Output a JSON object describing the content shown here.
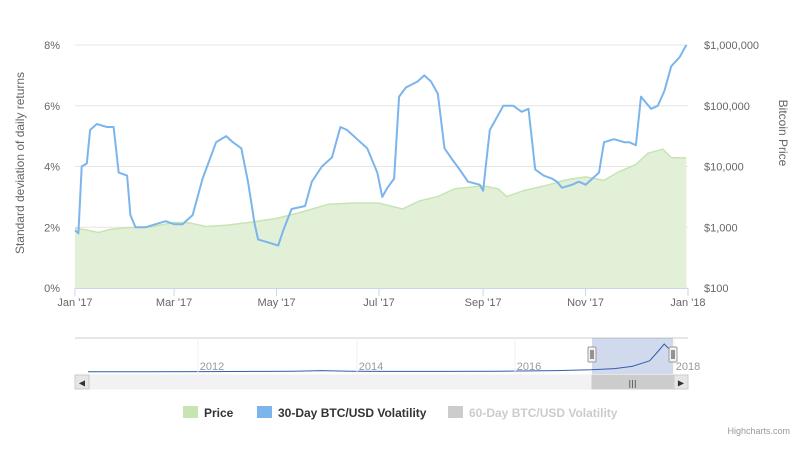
{
  "chart_data": {
    "type": "line",
    "x_axis": {
      "ticks": [
        "Jan '17",
        "Mar '17",
        "May '17",
        "Jul '17",
        "Sep '17",
        "Nov '17",
        "Jan '18"
      ],
      "tick_dates": [
        "2017-01-01",
        "2017-03-01",
        "2017-05-01",
        "2017-07-01",
        "2017-09-01",
        "2017-11-01",
        "2018-01-01"
      ],
      "range": [
        "2017-01-01",
        "2018-01-01"
      ]
    },
    "y_axis_left": {
      "title": "Standard deviation of daily returns",
      "ticks": [
        "0%",
        "2%",
        "4%",
        "6%",
        "8%"
      ],
      "range": [
        0,
        8
      ]
    },
    "y_axis_right": {
      "title": "Bitcoin Price",
      "ticks": [
        "$100",
        "$1,000",
        "$10,000",
        "$100,000",
        "$1,000,000"
      ],
      "scale": "log",
      "range": [
        100,
        1000000
      ]
    },
    "grid": true,
    "legend_position": "bottom",
    "series": [
      {
        "name": "Price",
        "type": "area",
        "axis": "right",
        "color": "#c7e4b3",
        "points": [
          [
            "2017-01-01",
            970
          ],
          [
            "2017-01-08",
            900
          ],
          [
            "2017-01-15",
            820
          ],
          [
            "2017-01-22",
            920
          ],
          [
            "2017-02-01",
            985
          ],
          [
            "2017-02-15",
            1010
          ],
          [
            "2017-03-01",
            1200
          ],
          [
            "2017-03-10",
            1180
          ],
          [
            "2017-03-20",
            1030
          ],
          [
            "2017-04-01",
            1080
          ],
          [
            "2017-04-15",
            1200
          ],
          [
            "2017-05-01",
            1400
          ],
          [
            "2017-05-15",
            1750
          ],
          [
            "2017-06-01",
            2400
          ],
          [
            "2017-06-15",
            2500
          ],
          [
            "2017-07-01",
            2500
          ],
          [
            "2017-07-15",
            2000
          ],
          [
            "2017-07-25",
            2700
          ],
          [
            "2017-08-05",
            3200
          ],
          [
            "2017-08-15",
            4300
          ],
          [
            "2017-09-01",
            4800
          ],
          [
            "2017-09-10",
            4300
          ],
          [
            "2017-09-15",
            3200
          ],
          [
            "2017-09-25",
            4000
          ],
          [
            "2017-10-10",
            5000
          ],
          [
            "2017-10-20",
            6000
          ],
          [
            "2017-11-01",
            6750
          ],
          [
            "2017-11-12",
            5900
          ],
          [
            "2017-11-20",
            8000
          ],
          [
            "2017-12-01",
            10800
          ],
          [
            "2017-12-08",
            16500
          ],
          [
            "2017-12-17",
            19300
          ],
          [
            "2017-12-22",
            14000
          ],
          [
            "2017-12-31",
            13800
          ]
        ]
      },
      {
        "name": "30-Day BTC/USD Volatility",
        "type": "line",
        "axis": "left",
        "color": "#7cb5ec",
        "points": [
          [
            "2017-01-01",
            1.9
          ],
          [
            "2017-01-03",
            1.8
          ],
          [
            "2017-01-05",
            4.0
          ],
          [
            "2017-01-08",
            4.1
          ],
          [
            "2017-01-10",
            5.2
          ],
          [
            "2017-01-14",
            5.4
          ],
          [
            "2017-01-20",
            5.3
          ],
          [
            "2017-01-24",
            5.3
          ],
          [
            "2017-01-27",
            3.8
          ],
          [
            "2017-02-01",
            3.7
          ],
          [
            "2017-02-03",
            2.4
          ],
          [
            "2017-02-06",
            2.0
          ],
          [
            "2017-02-12",
            2.0
          ],
          [
            "2017-02-18",
            2.1
          ],
          [
            "2017-02-24",
            2.2
          ],
          [
            "2017-03-01",
            2.1
          ],
          [
            "2017-03-06",
            2.1
          ],
          [
            "2017-03-12",
            2.4
          ],
          [
            "2017-03-18",
            3.6
          ],
          [
            "2017-03-26",
            4.8
          ],
          [
            "2017-04-01",
            5.0
          ],
          [
            "2017-04-05",
            4.8
          ],
          [
            "2017-04-10",
            4.6
          ],
          [
            "2017-04-14",
            3.5
          ],
          [
            "2017-04-18",
            2.1
          ],
          [
            "2017-04-20",
            1.6
          ],
          [
            "2017-04-26",
            1.5
          ],
          [
            "2017-05-02",
            1.4
          ],
          [
            "2017-05-05",
            1.9
          ],
          [
            "2017-05-10",
            2.6
          ],
          [
            "2017-05-18",
            2.7
          ],
          [
            "2017-05-22",
            3.5
          ],
          [
            "2017-05-28",
            4.0
          ],
          [
            "2017-06-03",
            4.3
          ],
          [
            "2017-06-08",
            5.3
          ],
          [
            "2017-06-12",
            5.2
          ],
          [
            "2017-06-18",
            4.9
          ],
          [
            "2017-06-24",
            4.6
          ],
          [
            "2017-06-30",
            3.8
          ],
          [
            "2017-07-03",
            3.0
          ],
          [
            "2017-07-06",
            3.3
          ],
          [
            "2017-07-10",
            3.6
          ],
          [
            "2017-07-13",
            6.3
          ],
          [
            "2017-07-17",
            6.6
          ],
          [
            "2017-07-24",
            6.8
          ],
          [
            "2017-07-28",
            7.0
          ],
          [
            "2017-08-01",
            6.8
          ],
          [
            "2017-08-05",
            6.4
          ],
          [
            "2017-08-09",
            4.6
          ],
          [
            "2017-08-14",
            4.2
          ],
          [
            "2017-08-18",
            3.9
          ],
          [
            "2017-08-23",
            3.5
          ],
          [
            "2017-08-30",
            3.4
          ],
          [
            "2017-09-01",
            3.2
          ],
          [
            "2017-09-05",
            5.2
          ],
          [
            "2017-09-08",
            5.5
          ],
          [
            "2017-09-13",
            6.0
          ],
          [
            "2017-09-19",
            6.0
          ],
          [
            "2017-09-24",
            5.8
          ],
          [
            "2017-09-28",
            5.9
          ],
          [
            "2017-10-02",
            3.9
          ],
          [
            "2017-10-07",
            3.7
          ],
          [
            "2017-10-12",
            3.6
          ],
          [
            "2017-10-15",
            3.5
          ],
          [
            "2017-10-18",
            3.3
          ],
          [
            "2017-10-24",
            3.4
          ],
          [
            "2017-10-28",
            3.5
          ],
          [
            "2017-11-01",
            3.4
          ],
          [
            "2017-11-05",
            3.6
          ],
          [
            "2017-11-09",
            3.8
          ],
          [
            "2017-11-12",
            4.8
          ],
          [
            "2017-11-18",
            4.9
          ],
          [
            "2017-11-24",
            4.8
          ],
          [
            "2017-11-27",
            4.8
          ],
          [
            "2017-12-01",
            4.7
          ],
          [
            "2017-12-04",
            6.3
          ],
          [
            "2017-12-07",
            6.1
          ],
          [
            "2017-12-10",
            5.9
          ],
          [
            "2017-12-14",
            6.0
          ],
          [
            "2017-12-18",
            6.5
          ],
          [
            "2017-12-22",
            7.3
          ],
          [
            "2017-12-27",
            7.6
          ],
          [
            "2017-12-31",
            8.0
          ]
        ]
      },
      {
        "name": "60-Day BTC/USD Volatility",
        "type": "line",
        "axis": "left",
        "visible": false,
        "color": "#cccccc",
        "points": []
      }
    ]
  },
  "navigator": {
    "labels": [
      "2012",
      "2014",
      "2016",
      "2018"
    ],
    "selected_range": [
      "2017-01-01",
      "2018-01-01"
    ],
    "handle_glyph": "|||",
    "left_arrow": "◀",
    "right_arrow": "▶",
    "series_points": [
      [
        0.0,
        0.01
      ],
      [
        0.1,
        0.01
      ],
      [
        0.2,
        0.015
      ],
      [
        0.3,
        0.02
      ],
      [
        0.35,
        0.03
      ],
      [
        0.4,
        0.05
      ],
      [
        0.45,
        0.03
      ],
      [
        0.5,
        0.02
      ],
      [
        0.55,
        0.02
      ],
      [
        0.6,
        0.02
      ],
      [
        0.7,
        0.03
      ],
      [
        0.8,
        0.05
      ],
      [
        0.86,
        0.08
      ],
      [
        0.9,
        0.12
      ],
      [
        0.93,
        0.2
      ],
      [
        0.96,
        0.4
      ],
      [
        0.975,
        0.75
      ],
      [
        0.985,
        1.0
      ],
      [
        0.992,
        0.85
      ],
      [
        1.0,
        0.8
      ]
    ]
  },
  "legend": [
    {
      "label": "Price",
      "color": "#c7e4b3",
      "text_color": "#333333"
    },
    {
      "label": "30-Day BTC/USD Volatility",
      "color": "#7cb5ec",
      "text_color": "#333333"
    },
    {
      "label": "60-Day BTC/USD Volatility",
      "color": "#cccccc",
      "text_color": "#cccccc"
    }
  ],
  "credits": "Highcharts.com"
}
